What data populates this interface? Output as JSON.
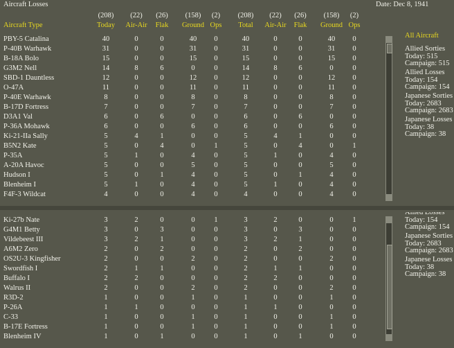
{
  "header": {
    "title": "Aircraft Losses",
    "date": "Date: Dec 8, 1941"
  },
  "columns": {
    "type_label": "Aircraft Type",
    "counts": [
      "(208)",
      "(22)",
      "(26)",
      "(158)",
      "(2)",
      "(208)",
      "(22)",
      "(26)",
      "(158)",
      "(2)"
    ],
    "labels": [
      "Today",
      "Air-Air",
      "Flak",
      "Ground",
      "Ops",
      "Total",
      "Air-Air",
      "Flak",
      "Ground",
      "Ops"
    ]
  },
  "top_table": {
    "rows": [
      [
        "PBY-5 Catalina",
        40,
        0,
        0,
        40,
        0,
        40,
        0,
        0,
        40,
        0
      ],
      [
        "P-40B Warhawk",
        31,
        0,
        0,
        31,
        0,
        31,
        0,
        0,
        31,
        0
      ],
      [
        "B-18A Bolo",
        15,
        0,
        0,
        15,
        0,
        15,
        0,
        0,
        15,
        0
      ],
      [
        "G3M2 Nell",
        14,
        8,
        6,
        0,
        0,
        14,
        8,
        6,
        0,
        0
      ],
      [
        "SBD-1 Dauntless",
        12,
        0,
        0,
        12,
        0,
        12,
        0,
        0,
        12,
        0
      ],
      [
        "O-47A",
        11,
        0,
        0,
        11,
        0,
        11,
        0,
        0,
        11,
        0
      ],
      [
        "P-40E Warhawk",
        8,
        0,
        0,
        8,
        0,
        8,
        0,
        0,
        8,
        0
      ],
      [
        "B-17D Fortress",
        7,
        0,
        0,
        7,
        0,
        7,
        0,
        0,
        7,
        0
      ],
      [
        "D3A1 Val",
        6,
        0,
        6,
        0,
        0,
        6,
        0,
        6,
        0,
        0
      ],
      [
        "P-36A Mohawk",
        6,
        0,
        0,
        6,
        0,
        6,
        0,
        0,
        6,
        0
      ],
      [
        "Ki-21-IIa Sally",
        5,
        4,
        1,
        0,
        0,
        5,
        4,
        1,
        0,
        0
      ],
      [
        "B5N2 Kate",
        5,
        0,
        4,
        0,
        1,
        5,
        0,
        4,
        0,
        1
      ],
      [
        "P-35A",
        5,
        1,
        0,
        4,
        0,
        5,
        1,
        0,
        4,
        0
      ],
      [
        "A-20A Havoc",
        5,
        0,
        0,
        5,
        0,
        5,
        0,
        0,
        5,
        0
      ],
      [
        "Hudson I",
        5,
        0,
        1,
        4,
        0,
        5,
        0,
        1,
        4,
        0
      ],
      [
        "Blenheim I",
        5,
        1,
        0,
        4,
        0,
        5,
        1,
        0,
        4,
        0
      ],
      [
        "F4F-3 Wildcat",
        4,
        0,
        0,
        4,
        0,
        4,
        0,
        0,
        4,
        0
      ]
    ]
  },
  "bottom_table": {
    "rows": [
      [
        "Ki-27b Nate",
        3,
        2,
        0,
        0,
        1,
        3,
        2,
        0,
        0,
        1
      ],
      [
        "G4M1 Betty",
        3,
        0,
        3,
        0,
        0,
        3,
        0,
        3,
        0,
        0
      ],
      [
        "Vildebeest III",
        3,
        2,
        1,
        0,
        0,
        3,
        2,
        1,
        0,
        0
      ],
      [
        "A6M2 Zero",
        2,
        0,
        2,
        0,
        0,
        2,
        0,
        2,
        0,
        0
      ],
      [
        "OS2U-3 Kingfisher",
        2,
        0,
        0,
        2,
        0,
        2,
        0,
        0,
        2,
        0
      ],
      [
        "Swordfish I",
        2,
        1,
        1,
        0,
        0,
        2,
        1,
        1,
        0,
        0
      ],
      [
        "Buffalo I",
        2,
        2,
        0,
        0,
        0,
        2,
        2,
        0,
        0,
        0
      ],
      [
        "Walrus II",
        2,
        0,
        0,
        2,
        0,
        2,
        0,
        0,
        2,
        0
      ],
      [
        "R3D-2",
        1,
        0,
        0,
        1,
        0,
        1,
        0,
        0,
        1,
        0
      ],
      [
        "P-26A",
        1,
        1,
        0,
        0,
        0,
        1,
        1,
        0,
        0,
        0
      ],
      [
        "C-33",
        1,
        0,
        0,
        1,
        0,
        1,
        0,
        0,
        1,
        0
      ],
      [
        "B-17E Fortress",
        1,
        0,
        0,
        1,
        0,
        1,
        0,
        0,
        1,
        0
      ],
      [
        "Blenheim IV",
        1,
        0,
        1,
        0,
        0,
        1,
        0,
        1,
        0,
        0
      ]
    ]
  },
  "side_top": {
    "title": "All Aircraft",
    "groups": [
      {
        "heading": "Allied Sorties",
        "lines": [
          "Today:  515",
          "Campaign: 515"
        ]
      },
      {
        "heading": "Allied Losses",
        "lines": [
          "Today:  154",
          "Campaign: 154"
        ]
      },
      {
        "heading": "Japanese Sorties",
        "lines": [
          "Today:  2683",
          "Campaign: 2683"
        ]
      },
      {
        "heading": "Japanese Losses",
        "lines": [
          "Today:  38",
          "Campaign: 38"
        ]
      }
    ]
  },
  "side_bottom": {
    "groups": [
      {
        "heading": "Allied Losses",
        "lines": [
          "Today:  154",
          "Campaign: 154"
        ]
      },
      {
        "heading": "Japanese Sorties",
        "lines": [
          "Today:  2683",
          "Campaign: 2683"
        ]
      },
      {
        "heading": "Japanese Losses",
        "lines": [
          "Today:  38",
          "Campaign: 38"
        ]
      }
    ]
  }
}
